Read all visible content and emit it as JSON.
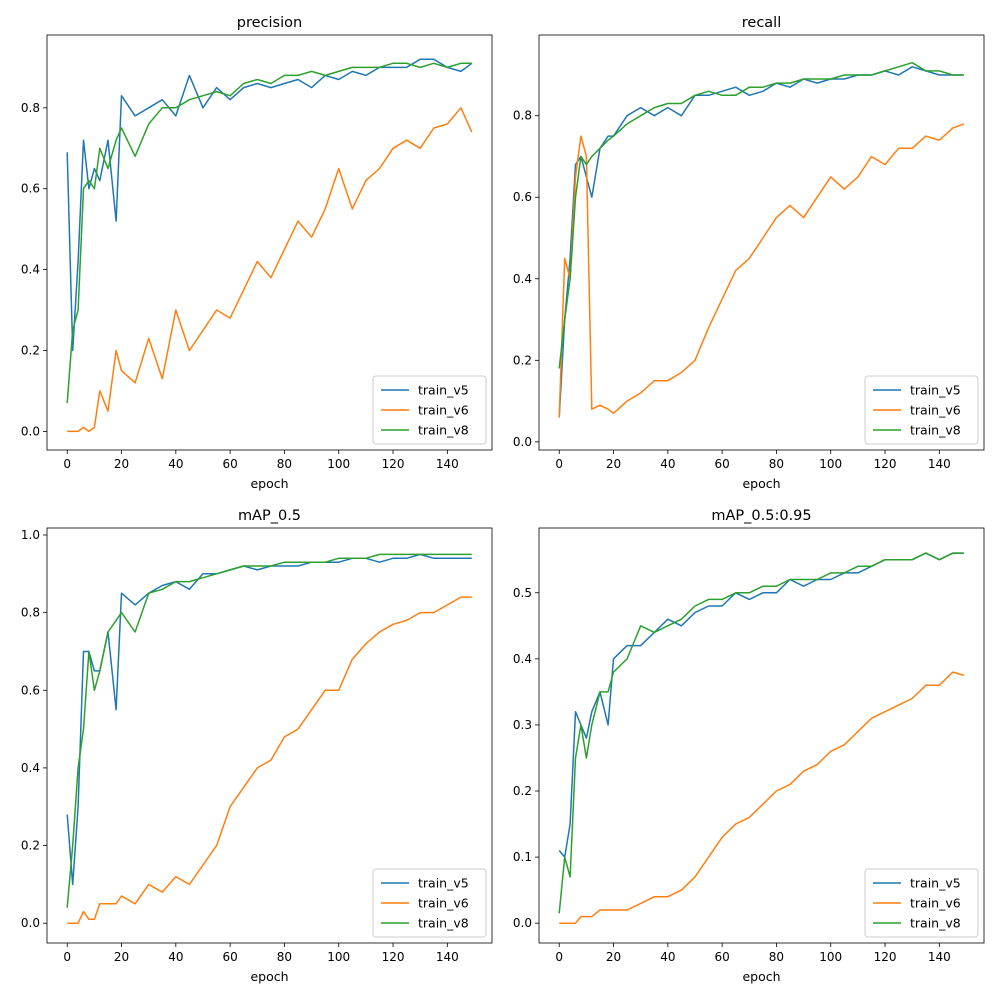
{
  "chart_data": [
    {
      "type": "line",
      "title": "precision",
      "xlabel": "epoch",
      "ylabel": "",
      "xlim": [
        -7.45,
        156.45
      ],
      "ylim": [
        -0.046,
        0.98
      ],
      "xticks": [
        0,
        20,
        40,
        60,
        80,
        100,
        120,
        140
      ],
      "yticks": [
        0.0,
        0.2,
        0.4,
        0.6,
        0.8
      ],
      "legend": "lower-right",
      "x": [
        0,
        2,
        4,
        6,
        8,
        10,
        12,
        15,
        18,
        20,
        25,
        30,
        35,
        40,
        45,
        50,
        55,
        60,
        65,
        70,
        75,
        80,
        85,
        90,
        95,
        100,
        105,
        110,
        115,
        120,
        125,
        130,
        135,
        140,
        145,
        149
      ],
      "series": [
        {
          "name": "train_v5",
          "color": "#1f77b4",
          "values": [
            0.69,
            0.2,
            0.42,
            0.72,
            0.6,
            0.65,
            0.62,
            0.72,
            0.52,
            0.83,
            0.78,
            0.8,
            0.82,
            0.78,
            0.88,
            0.8,
            0.85,
            0.82,
            0.85,
            0.86,
            0.85,
            0.86,
            0.87,
            0.85,
            0.88,
            0.87,
            0.89,
            0.88,
            0.9,
            0.9,
            0.9,
            0.92,
            0.92,
            0.9,
            0.89,
            0.91
          ]
        },
        {
          "name": "train_v6",
          "color": "#ff7f0e",
          "values": [
            0,
            0,
            0,
            0.01,
            0,
            0.01,
            0.1,
            0.05,
            0.2,
            0.15,
            0.12,
            0.23,
            0.13,
            0.3,
            0.2,
            0.25,
            0.3,
            0.28,
            0.35,
            0.42,
            0.38,
            0.45,
            0.52,
            0.48,
            0.55,
            0.65,
            0.55,
            0.62,
            0.65,
            0.7,
            0.72,
            0.7,
            0.75,
            0.76,
            0.8,
            0.74
          ]
        },
        {
          "name": "train_v8",
          "color": "#2ca02c",
          "values": [
            0.07,
            0.25,
            0.3,
            0.6,
            0.62,
            0.6,
            0.7,
            0.65,
            0.72,
            0.75,
            0.68,
            0.76,
            0.8,
            0.8,
            0.82,
            0.83,
            0.84,
            0.83,
            0.86,
            0.87,
            0.86,
            0.88,
            0.88,
            0.89,
            0.88,
            0.89,
            0.9,
            0.9,
            0.9,
            0.91,
            0.91,
            0.9,
            0.91,
            0.9,
            0.91,
            0.91
          ]
        }
      ]
    },
    {
      "type": "line",
      "title": "recall",
      "xlabel": "epoch",
      "ylabel": "",
      "xlim": [
        -7.45,
        156.45
      ],
      "ylim": [
        -0.02,
        0.998
      ],
      "xticks": [
        0,
        20,
        40,
        60,
        80,
        100,
        120,
        140
      ],
      "yticks": [
        0.0,
        0.2,
        0.4,
        0.6,
        0.8
      ],
      "legend": "lower-right",
      "x": [
        0,
        2,
        4,
        6,
        8,
        10,
        12,
        15,
        18,
        20,
        25,
        30,
        35,
        40,
        45,
        50,
        55,
        60,
        65,
        70,
        75,
        80,
        85,
        90,
        95,
        100,
        105,
        110,
        115,
        120,
        125,
        130,
        135,
        140,
        145,
        149
      ],
      "series": [
        {
          "name": "train_v5",
          "color": "#1f77b4",
          "values": [
            0.06,
            0.3,
            0.45,
            0.68,
            0.7,
            0.65,
            0.6,
            0.72,
            0.75,
            0.75,
            0.8,
            0.82,
            0.8,
            0.82,
            0.8,
            0.85,
            0.85,
            0.86,
            0.87,
            0.85,
            0.86,
            0.88,
            0.87,
            0.89,
            0.88,
            0.89,
            0.89,
            0.9,
            0.9,
            0.91,
            0.9,
            0.92,
            0.91,
            0.9,
            0.9,
            0.9
          ]
        },
        {
          "name": "train_v6",
          "color": "#ff7f0e",
          "values": [
            0.06,
            0.45,
            0.4,
            0.65,
            0.75,
            0.7,
            0.08,
            0.09,
            0.08,
            0.07,
            0.1,
            0.12,
            0.15,
            0.15,
            0.17,
            0.2,
            0.28,
            0.35,
            0.42,
            0.45,
            0.5,
            0.55,
            0.58,
            0.55,
            0.6,
            0.65,
            0.62,
            0.65,
            0.7,
            0.68,
            0.72,
            0.72,
            0.75,
            0.74,
            0.77,
            0.78
          ]
        },
        {
          "name": "train_v8",
          "color": "#2ca02c",
          "values": [
            0.18,
            0.3,
            0.4,
            0.6,
            0.7,
            0.68,
            0.7,
            0.72,
            0.74,
            0.75,
            0.78,
            0.8,
            0.82,
            0.83,
            0.83,
            0.85,
            0.86,
            0.85,
            0.85,
            0.87,
            0.87,
            0.88,
            0.88,
            0.89,
            0.89,
            0.89,
            0.9,
            0.9,
            0.9,
            0.91,
            0.92,
            0.93,
            0.91,
            0.91,
            0.9,
            0.9
          ]
        }
      ]
    },
    {
      "type": "line",
      "title": "mAP_0.5",
      "xlabel": "epoch",
      "ylabel": "",
      "xlim": [
        -7.45,
        156.45
      ],
      "ylim": [
        -0.051,
        1.018
      ],
      "xticks": [
        0,
        20,
        40,
        60,
        80,
        100,
        120,
        140
      ],
      "yticks": [
        0.0,
        0.2,
        0.4,
        0.6,
        0.8,
        1.0
      ],
      "legend": "lower-right",
      "x": [
        0,
        2,
        4,
        6,
        8,
        10,
        12,
        15,
        18,
        20,
        25,
        30,
        35,
        40,
        45,
        50,
        55,
        60,
        65,
        70,
        75,
        80,
        85,
        90,
        95,
        100,
        105,
        110,
        115,
        120,
        125,
        130,
        135,
        140,
        145,
        149
      ],
      "series": [
        {
          "name": "train_v5",
          "color": "#1f77b4",
          "values": [
            0.28,
            0.1,
            0.3,
            0.7,
            0.7,
            0.65,
            0.65,
            0.75,
            0.55,
            0.85,
            0.82,
            0.85,
            0.87,
            0.88,
            0.86,
            0.9,
            0.9,
            0.91,
            0.92,
            0.91,
            0.92,
            0.92,
            0.92,
            0.93,
            0.93,
            0.93,
            0.94,
            0.94,
            0.93,
            0.94,
            0.94,
            0.95,
            0.94,
            0.94,
            0.94,
            0.94
          ]
        },
        {
          "name": "train_v6",
          "color": "#ff7f0e",
          "values": [
            0,
            0,
            0,
            0.03,
            0.01,
            0.01,
            0.05,
            0.05,
            0.05,
            0.07,
            0.05,
            0.1,
            0.08,
            0.12,
            0.1,
            0.15,
            0.2,
            0.3,
            0.35,
            0.4,
            0.42,
            0.48,
            0.5,
            0.55,
            0.6,
            0.6,
            0.68,
            0.72,
            0.75,
            0.77,
            0.78,
            0.8,
            0.8,
            0.82,
            0.84,
            0.84
          ]
        },
        {
          "name": "train_v8",
          "color": "#2ca02c",
          "values": [
            0.04,
            0.2,
            0.4,
            0.5,
            0.7,
            0.6,
            0.65,
            0.75,
            0.78,
            0.8,
            0.75,
            0.85,
            0.86,
            0.88,
            0.88,
            0.89,
            0.9,
            0.91,
            0.92,
            0.92,
            0.92,
            0.93,
            0.93,
            0.93,
            0.93,
            0.94,
            0.94,
            0.94,
            0.95,
            0.95,
            0.95,
            0.95,
            0.95,
            0.95,
            0.95,
            0.95
          ]
        }
      ]
    },
    {
      "type": "line",
      "title": "mAP_0.5:0.95",
      "xlabel": "epoch",
      "ylabel": "",
      "xlim": [
        -7.45,
        156.45
      ],
      "ylim": [
        -0.03,
        0.598
      ],
      "xticks": [
        0,
        20,
        40,
        60,
        80,
        100,
        120,
        140
      ],
      "yticks": [
        0.0,
        0.1,
        0.2,
        0.3,
        0.4,
        0.5
      ],
      "legend": "lower-right",
      "x": [
        0,
        2,
        4,
        6,
        8,
        10,
        12,
        15,
        18,
        20,
        25,
        30,
        35,
        40,
        45,
        50,
        55,
        60,
        65,
        70,
        75,
        80,
        85,
        90,
        95,
        100,
        105,
        110,
        115,
        120,
        125,
        130,
        135,
        140,
        145,
        149
      ],
      "series": [
        {
          "name": "train_v5",
          "color": "#1f77b4",
          "values": [
            0.11,
            0.1,
            0.15,
            0.32,
            0.3,
            0.28,
            0.32,
            0.35,
            0.3,
            0.4,
            0.42,
            0.42,
            0.44,
            0.46,
            0.45,
            0.47,
            0.48,
            0.48,
            0.5,
            0.49,
            0.5,
            0.5,
            0.52,
            0.51,
            0.52,
            0.52,
            0.53,
            0.53,
            0.54,
            0.55,
            0.55,
            0.55,
            0.56,
            0.55,
            0.56,
            0.56
          ]
        },
        {
          "name": "train_v6",
          "color": "#ff7f0e",
          "values": [
            0,
            0,
            0,
            0,
            0.01,
            0.01,
            0.01,
            0.02,
            0.02,
            0.02,
            0.02,
            0.03,
            0.04,
            0.04,
            0.05,
            0.07,
            0.1,
            0.13,
            0.15,
            0.16,
            0.18,
            0.2,
            0.21,
            0.23,
            0.24,
            0.26,
            0.27,
            0.29,
            0.31,
            0.32,
            0.33,
            0.34,
            0.36,
            0.36,
            0.38,
            0.375
          ]
        },
        {
          "name": "train_v8",
          "color": "#2ca02c",
          "values": [
            0.015,
            0.1,
            0.07,
            0.25,
            0.3,
            0.25,
            0.3,
            0.35,
            0.35,
            0.38,
            0.4,
            0.45,
            0.44,
            0.45,
            0.46,
            0.48,
            0.49,
            0.49,
            0.5,
            0.5,
            0.51,
            0.51,
            0.52,
            0.52,
            0.52,
            0.53,
            0.53,
            0.54,
            0.54,
            0.55,
            0.55,
            0.55,
            0.56,
            0.55,
            0.56,
            0.56
          ]
        }
      ]
    }
  ]
}
